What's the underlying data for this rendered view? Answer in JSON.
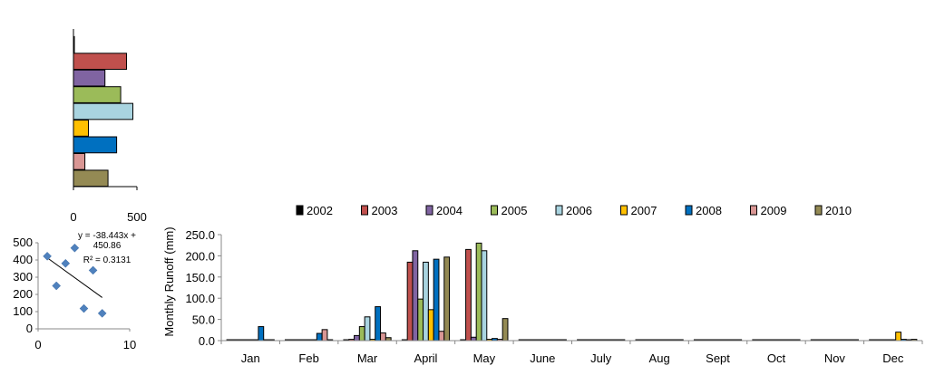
{
  "chart_data": [
    {
      "type": "bar",
      "orientation": "horizontal",
      "categories": [
        "2002",
        "2003",
        "2004",
        "2005",
        "2006",
        "2007",
        "2008",
        "2009",
        "2010"
      ],
      "values": [
        3,
        418,
        248,
        372,
        468,
        118,
        340,
        90,
        272
      ],
      "xlim": [
        0,
        500
      ],
      "xticks": [
        "0",
        "500"
      ],
      "grid": false
    },
    {
      "type": "scatter",
      "x": [
        1,
        2,
        3,
        4,
        5,
        6,
        7
      ],
      "y": [
        422,
        250,
        380,
        470,
        118,
        340,
        90
      ],
      "xlim": [
        0,
        10
      ],
      "ylim": [
        0,
        500
      ],
      "xticks": [
        "0",
        "10"
      ],
      "yticks": [
        "0",
        "100",
        "200",
        "300",
        "400",
        "500"
      ],
      "trendline": {
        "slope": -38.443,
        "intercept": 450.86
      },
      "annotations": [
        "y = -38.443x +",
        "450.86",
        "R² = 0.3131"
      ],
      "grid": false
    },
    {
      "type": "bar",
      "categories": [
        "Jan",
        "Feb",
        "Mar",
        "April",
        "May",
        "June",
        "July",
        "Aug",
        "Sept",
        "Oct",
        "Nov",
        "Dec"
      ],
      "ylabel": "Monthly  Runoff (mm)",
      "ylim": [
        0,
        250
      ],
      "yticks": [
        "0.0",
        "50.0",
        "100.0",
        "150.0",
        "200.0",
        "250.0"
      ],
      "legend_position": "top",
      "grid": false,
      "series": [
        {
          "name": "2002",
          "color": "#000000",
          "values": [
            0,
            0,
            0,
            0,
            0,
            0,
            0,
            0,
            0,
            0,
            0,
            0
          ]
        },
        {
          "name": "2003",
          "color": "#c0504d",
          "values": [
            0,
            0,
            3,
            185,
            215,
            0,
            0,
            0,
            0,
            0,
            0,
            0
          ]
        },
        {
          "name": "2004",
          "color": "#8064a2",
          "values": [
            0,
            0,
            12,
            212,
            8,
            0,
            0,
            0,
            0,
            0,
            0,
            0
          ]
        },
        {
          "name": "2005",
          "color": "#9bbb59",
          "values": [
            0,
            0,
            33,
            98,
            230,
            0,
            0,
            0,
            0,
            0,
            0,
            0
          ]
        },
        {
          "name": "2006",
          "color": "#a9d4e0",
          "values": [
            0,
            0,
            56,
            185,
            212,
            0,
            0,
            0,
            0,
            0,
            0,
            0
          ]
        },
        {
          "name": "2007",
          "color": "#ffc000",
          "values": [
            0,
            0,
            3,
            73,
            3,
            0,
            0,
            0,
            0,
            0,
            0,
            20
          ]
        },
        {
          "name": "2008",
          "color": "#0070c0",
          "values": [
            33,
            17,
            80,
            192,
            5,
            0,
            0,
            0,
            0,
            0,
            0,
            3
          ]
        },
        {
          "name": "2009",
          "color": "#d99694",
          "values": [
            0,
            26,
            18,
            22,
            3,
            0,
            0,
            0,
            0,
            0,
            0,
            0
          ]
        },
        {
          "name": "2010",
          "color": "#948a54",
          "values": [
            0,
            2,
            7,
            197,
            52,
            0,
            0,
            0,
            0,
            0,
            0,
            3
          ]
        }
      ]
    }
  ]
}
